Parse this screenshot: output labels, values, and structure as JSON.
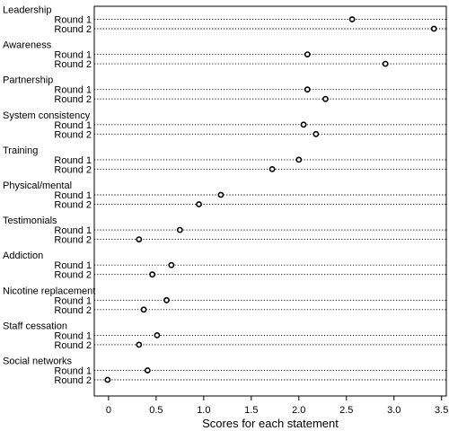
{
  "chart_data": {
    "type": "scatter",
    "xlabel": "Scores for each statement",
    "ylabel": "",
    "xlim": [
      -0.15,
      3.55
    ],
    "x_ticks": [
      "0",
      "0.5",
      "1.0",
      "1.5",
      "2.0",
      "2.5",
      "3.0",
      "3.5"
    ],
    "x_tick_values": [
      0,
      0.5,
      1.0,
      1.5,
      2.0,
      2.5,
      3.0,
      3.5
    ],
    "grid": false,
    "marker": "open-circle",
    "series": [
      {
        "name": "Round 1"
      },
      {
        "name": "Round 2"
      }
    ],
    "groups": [
      {
        "label": "Leadership",
        "rounds": [
          {
            "label": "Round 1",
            "value": 2.56
          },
          {
            "label": "Round 2",
            "value": 3.42
          }
        ]
      },
      {
        "label": "Awareness",
        "rounds": [
          {
            "label": "Round 1",
            "value": 2.09
          },
          {
            "label": "Round 2",
            "value": 2.91
          }
        ]
      },
      {
        "label": "Partnership",
        "rounds": [
          {
            "label": "Round 1",
            "value": 2.09
          },
          {
            "label": "Round 2",
            "value": 2.28
          }
        ]
      },
      {
        "label": "System consistency",
        "rounds": [
          {
            "label": "Round 1",
            "value": 2.05
          },
          {
            "label": "Round 2",
            "value": 2.18
          }
        ]
      },
      {
        "label": "Training",
        "rounds": [
          {
            "label": "Round 1",
            "value": 2.0
          },
          {
            "label": "Round 2",
            "value": 1.72
          }
        ]
      },
      {
        "label": "Physical/mental",
        "rounds": [
          {
            "label": "Round 1",
            "value": 1.18
          },
          {
            "label": "Round 2",
            "value": 0.95
          }
        ]
      },
      {
        "label": "Testimonials",
        "rounds": [
          {
            "label": "Round 1",
            "value": 0.75
          },
          {
            "label": "Round 2",
            "value": 0.32
          }
        ]
      },
      {
        "label": "Addiction",
        "rounds": [
          {
            "label": "Round 1",
            "value": 0.66
          },
          {
            "label": "Round 2",
            "value": 0.46
          }
        ]
      },
      {
        "label": "Nicotine replacement",
        "rounds": [
          {
            "label": "Round 1",
            "value": 0.61
          },
          {
            "label": "Round 2",
            "value": 0.37
          }
        ]
      },
      {
        "label": "Staff cessation",
        "rounds": [
          {
            "label": "Round 1",
            "value": 0.51
          },
          {
            "label": "Round 2",
            "value": 0.32
          }
        ]
      },
      {
        "label": "Social networks",
        "rounds": [
          {
            "label": "Round 1",
            "value": 0.41
          },
          {
            "label": "Round 2",
            "value": -0.01
          }
        ]
      }
    ]
  }
}
